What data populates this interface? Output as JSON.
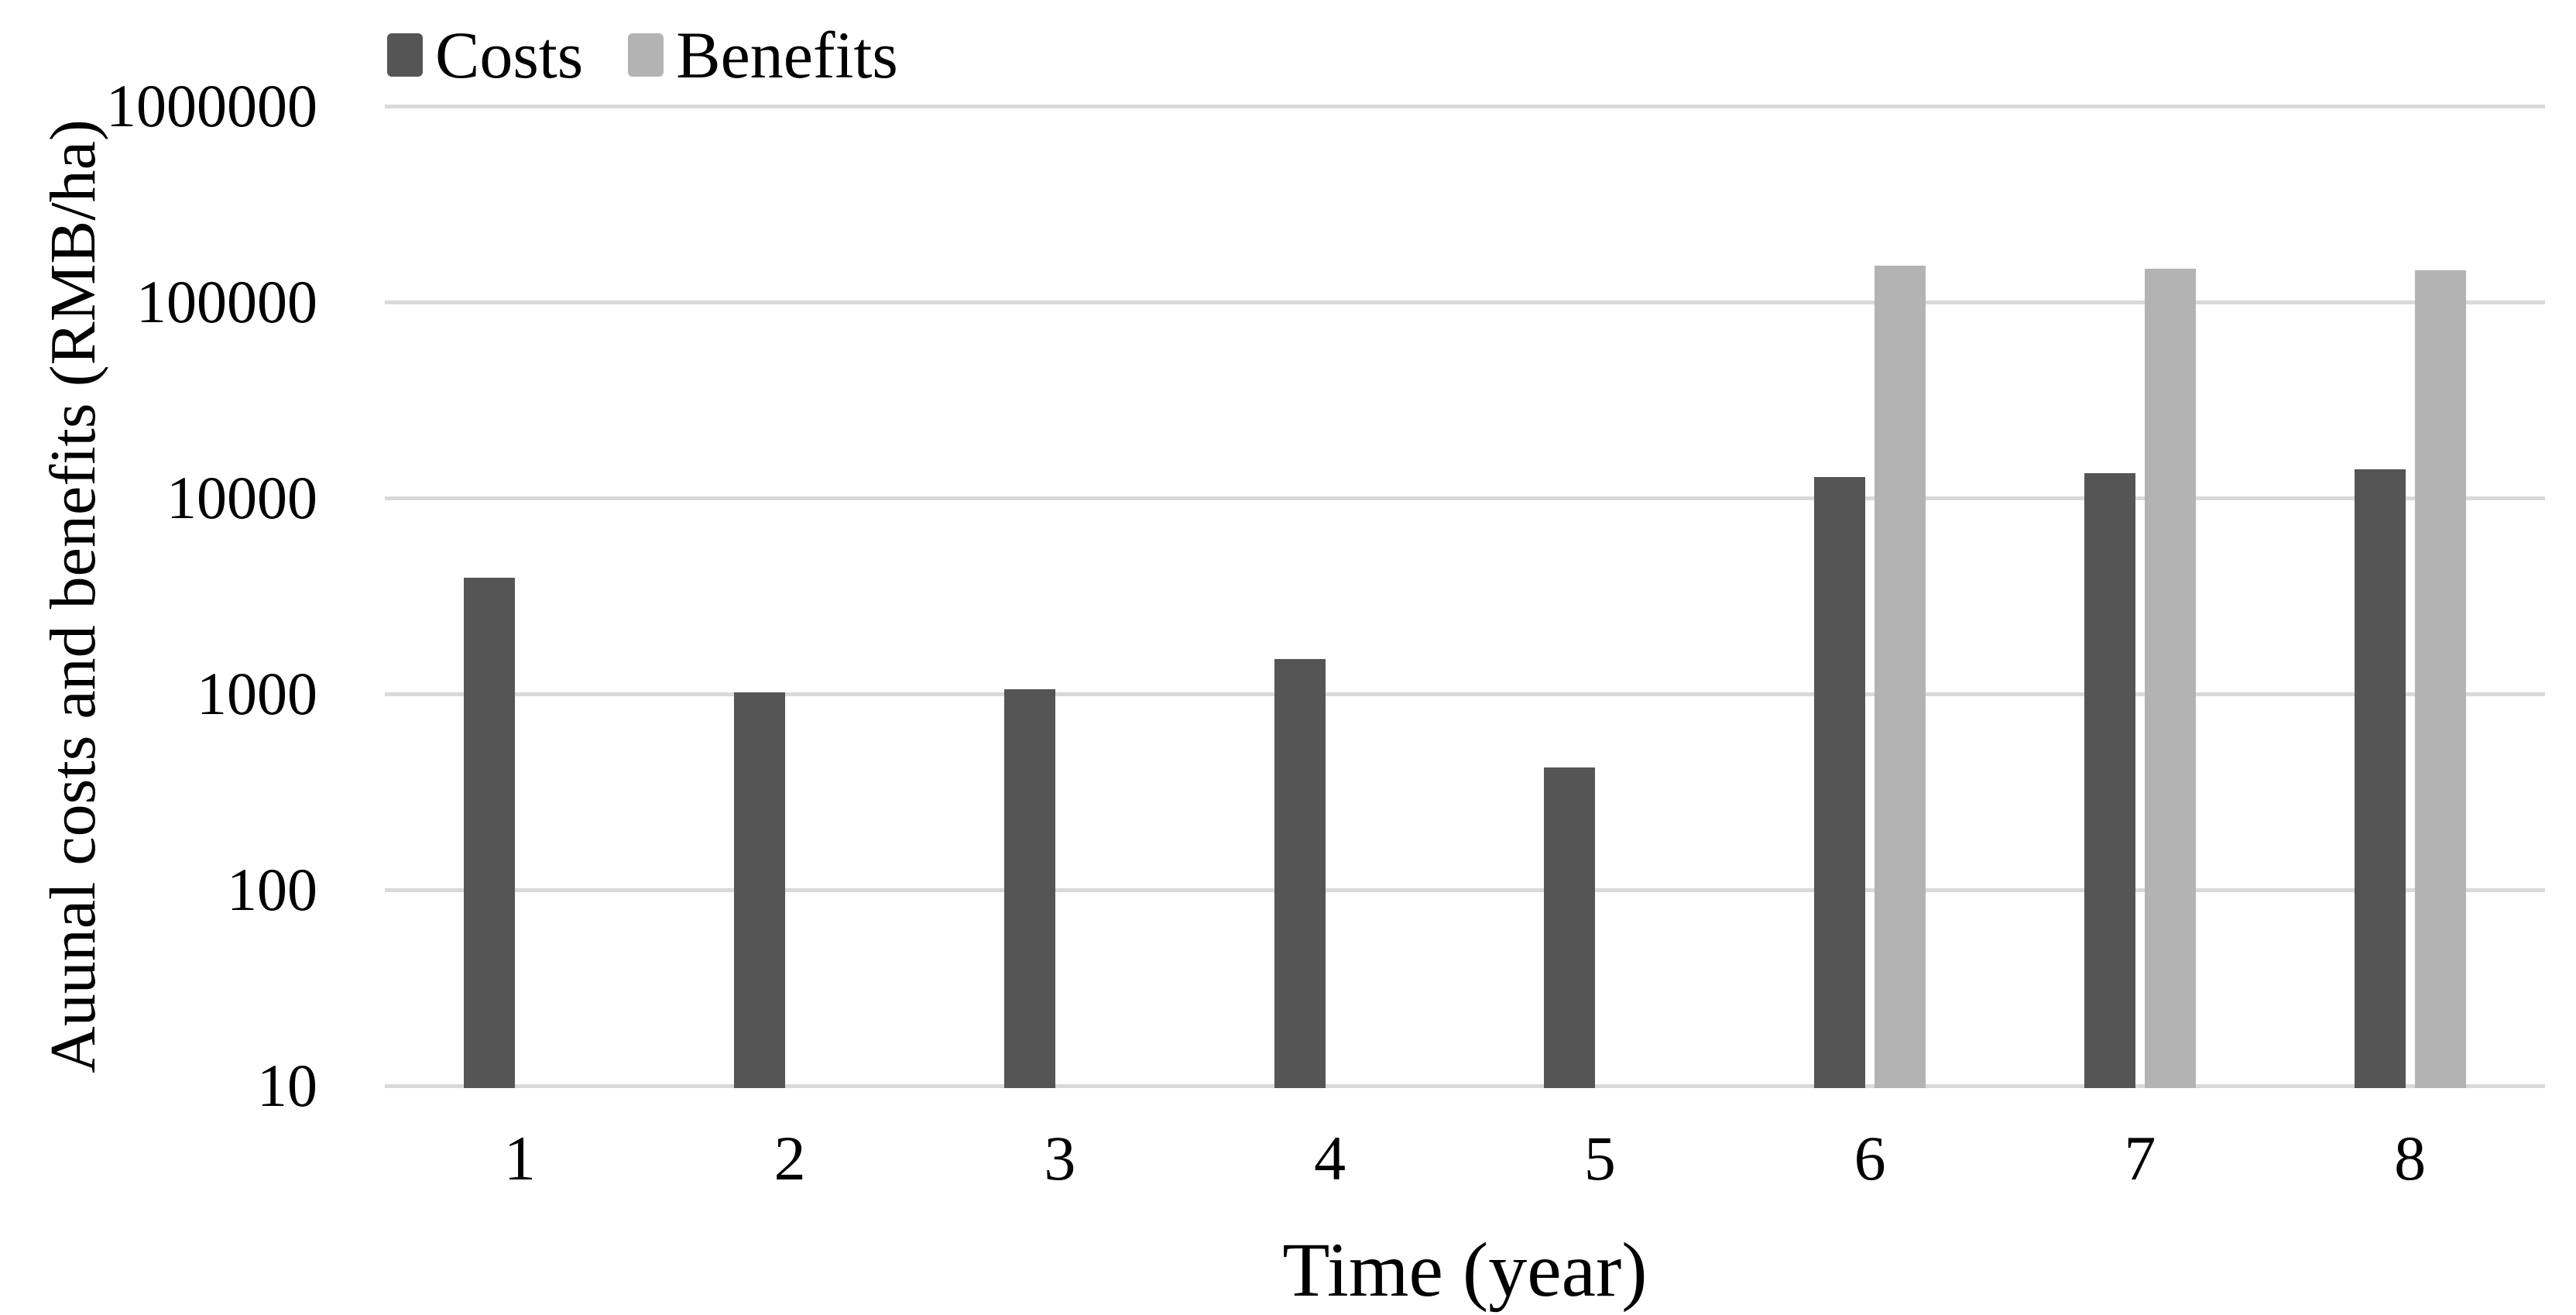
{
  "chart_data": {
    "type": "bar",
    "title": "",
    "xlabel": "Time (year)",
    "ylabel": "Auunal costs and benefits (RMB/ha)",
    "categories": [
      "1",
      "2",
      "3",
      "4",
      "5",
      "6",
      "7",
      "8"
    ],
    "series": [
      {
        "name": "Costs",
        "color": "#555555",
        "values": [
          3900,
          1020,
          1060,
          1510,
          420,
          12800,
          13400,
          14000
        ]
      },
      {
        "name": "Benefits",
        "color": "#b3b3b3",
        "values": [
          null,
          null,
          null,
          null,
          null,
          153000,
          148000,
          145000
        ]
      }
    ],
    "y_scale": "log",
    "ylim": [
      10,
      1000000
    ],
    "y_ticks": [
      10,
      100,
      1000,
      10000,
      100000,
      1000000
    ],
    "y_tick_labels": [
      "10",
      "100",
      "1000",
      "10000",
      "100000",
      "1000000"
    ],
    "grid": true,
    "gridline_color": "#d9d9d9",
    "legend_position": "top-left",
    "background_color": "#ffffff",
    "text_color": "#000000"
  }
}
